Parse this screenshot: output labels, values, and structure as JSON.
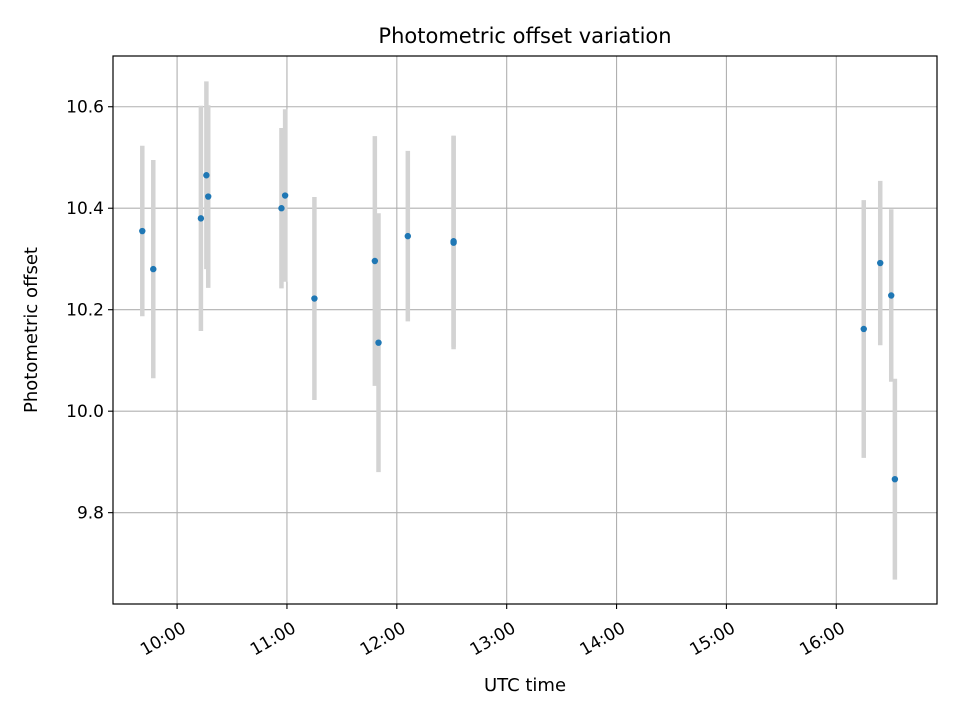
{
  "chart_data": {
    "type": "scatter",
    "title": "Photometric offset variation",
    "xlabel": "UTC time",
    "ylabel": "Photometric offset",
    "grid": true,
    "xlim": [
      "09:25",
      "16:55"
    ],
    "ylim": [
      9.62,
      10.7
    ],
    "x_ticks": [
      "10:00",
      "11:00",
      "12:00",
      "13:00",
      "14:00",
      "15:00",
      "16:00"
    ],
    "y_ticks": [
      "9.8",
      "10.0",
      "10.2",
      "10.4",
      "10.6"
    ],
    "colors": {
      "point": "#1f77b4",
      "errorbar": "#d3d3d3",
      "grid": "#b0b0b0"
    },
    "series": [
      {
        "x": [
          "09:41",
          "09:47",
          "10:13",
          "10:16",
          "10:17",
          "10:57",
          "10:59",
          "11:15",
          "11:48",
          "11:50",
          "12:06",
          "12:31",
          "12:31",
          "16:15",
          "16:24",
          "16:30",
          "16:32"
        ],
        "y": [
          10.355,
          10.28,
          10.38,
          10.465,
          10.423,
          10.4,
          10.425,
          10.222,
          10.296,
          10.135,
          10.345,
          10.332,
          10.335,
          10.162,
          10.292,
          10.228,
          9.866
        ],
        "yerr": [
          0.168,
          0.215,
          0.222,
          0.185,
          0.18,
          0.158,
          0.17,
          0.2,
          0.246,
          0.255,
          0.168,
          0.21,
          0.208,
          0.254,
          0.162,
          0.17,
          0.198
        ]
      }
    ]
  }
}
